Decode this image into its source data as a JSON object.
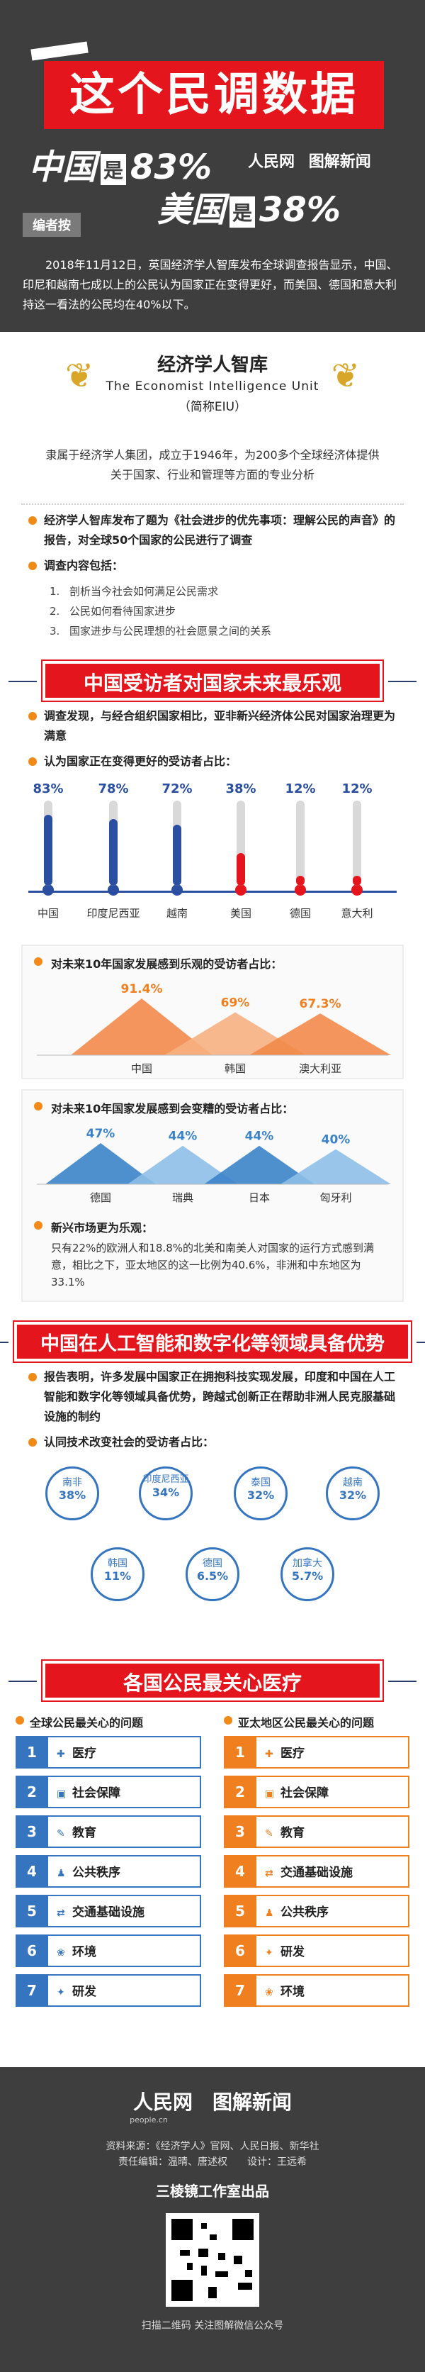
{
  "header": {
    "banner": "这个民调数据",
    "line1": {
      "country": "中国",
      "is": "是",
      "value": "83%"
    },
    "line2": {
      "country": "美国",
      "is": "是",
      "value": "38%"
    },
    "logo1": "人民网",
    "logo2": "图解新闻",
    "editor_tag": "编者按"
  },
  "note": "2018年11月12日，英国经济学人智库发布全球调查报告显示，中国、印尼和越南七成以上的公民认为国家正在变得更好，而美国、德国和意大利持这一看法的公民均在40%以下。",
  "eiu": {
    "cn": "经济学人智库",
    "en": "The Economist Intelligence Unit",
    "abbr": "（简称EIU）",
    "desc": "隶属于经济学人集团，成立于1946年，为200多个全球经济体提供关于国家、行业和管理等方面的专业分析"
  },
  "intro_bullet": "经济学人智库发布了题为《社会进步的优先事项：理解公民的声音》的报告，对全球50个国家的公民进行了调查",
  "content_bullet": "调查内容包括：",
  "content_items": [
    {
      "n": "1.",
      "text": "剖析当今社会如何满足公民需求"
    },
    {
      "n": "2.",
      "text": "公民如何看待国家进步"
    },
    {
      "n": "3.",
      "text": "国家进步与公民理想的社会愿景之间的关系"
    }
  ],
  "section1": "中国受访者对国家未来最乐观",
  "s1_bullet1": "调查发现，与经合组织国家相比，亚非新兴经济体公民对国家治理更为满意",
  "s1_bullet2": "认为国家正在变得更好的受访者占比：",
  "thermo": [
    {
      "name": "中国",
      "pct": "83%",
      "value": 83,
      "color": "#2b4fa0"
    },
    {
      "name": "印度尼西亚",
      "pct": "78%",
      "value": 78,
      "color": "#2b4fa0"
    },
    {
      "name": "越南",
      "pct": "72%",
      "value": 72,
      "color": "#2b4fa0"
    },
    {
      "name": "美国",
      "pct": "38%",
      "value": 38,
      "color": "#e4151d"
    },
    {
      "name": "德国",
      "pct": "12%",
      "value": 12,
      "color": "#e4151d"
    },
    {
      "name": "意大利",
      "pct": "12%",
      "value": 12,
      "color": "#e4151d"
    }
  ],
  "panel1": {
    "title": "对未来10年国家发展感到乐观的受访者占比：",
    "peaks": [
      {
        "name": "中国",
        "pct": "91.4%",
        "value": 91.4
      },
      {
        "name": "韩国",
        "pct": "69%",
        "value": 69
      },
      {
        "name": "澳大利亚",
        "pct": "67.3%",
        "value": 67.3
      }
    ]
  },
  "panel2": {
    "title": "对未来10年国家发展感到会变糟的受访者占比：",
    "peaks": [
      {
        "name": "德国",
        "pct": "47%",
        "value": 47
      },
      {
        "name": "瑞典",
        "pct": "44%",
        "value": 44
      },
      {
        "name": "日本",
        "pct": "44%",
        "value": 44
      },
      {
        "name": "匈牙利",
        "pct": "40%",
        "value": 40
      }
    ],
    "bullet": "新兴市场更为乐观：",
    "text": "只有22%的欧洲人和18.8%的北美和南美人对国家的运行方式感到满意，相比之下，亚太地区的这一比例为40.6%，非洲和中东地区为33.1%"
  },
  "section2": "中国在人工智能和数字化等领域具备优势",
  "s2_bullet1": "报告表明，许多发展中国家正在拥抱科技实现发展，印度和中国在人工智能和数字化等领域具备优势，跨越式创新正在帮助非洲人民克服基础设施的制约",
  "s2_bullet2": "认同技术改变社会的受访者占比：",
  "circles": [
    {
      "name": "南非",
      "pct": "38%",
      "color": "#3575c0"
    },
    {
      "name": "印度尼西亚",
      "pct": "34%",
      "color": "#3575c0"
    },
    {
      "name": "泰国",
      "pct": "32%",
      "color": "#3575c0"
    },
    {
      "name": "越南",
      "pct": "32%",
      "color": "#3575c0"
    },
    {
      "name": "韩国",
      "pct": "11%",
      "color": "#3575c0"
    },
    {
      "name": "德国",
      "pct": "6.5%",
      "color": "#3575c0"
    },
    {
      "name": "加拿大",
      "pct": "5.7%",
      "color": "#3575c0"
    }
  ],
  "section3": "各国公民最关心医疗",
  "list_left": {
    "title": "全球公民最关心的问题",
    "items": [
      "医疗",
      "社会保障",
      "教育",
      "公共秩序",
      "交通基础设施",
      "环境",
      "研发"
    ]
  },
  "list_right": {
    "title": "亚太地区公民最关心的问题",
    "items": [
      "医疗",
      "社会保障",
      "教育",
      "交通基础设施",
      "公共秩序",
      "研发",
      "环境"
    ]
  },
  "colors": {
    "blue": "#3575c0",
    "orange": "#f07f1f",
    "red": "#e4151d",
    "dark": "#3e3e3e"
  },
  "footer": {
    "logo1": "人民网",
    "logo1_sub": "people.cn",
    "logo2": "图解新闻",
    "src1": "资料来源：《经济学人》官网、人民日报、新华社",
    "src2": "责任编辑：温晴、唐述权　　设计：王远希",
    "studio": "三棱镜工作室出品",
    "scan": "扫描二维码 关注图解微信公众号"
  }
}
